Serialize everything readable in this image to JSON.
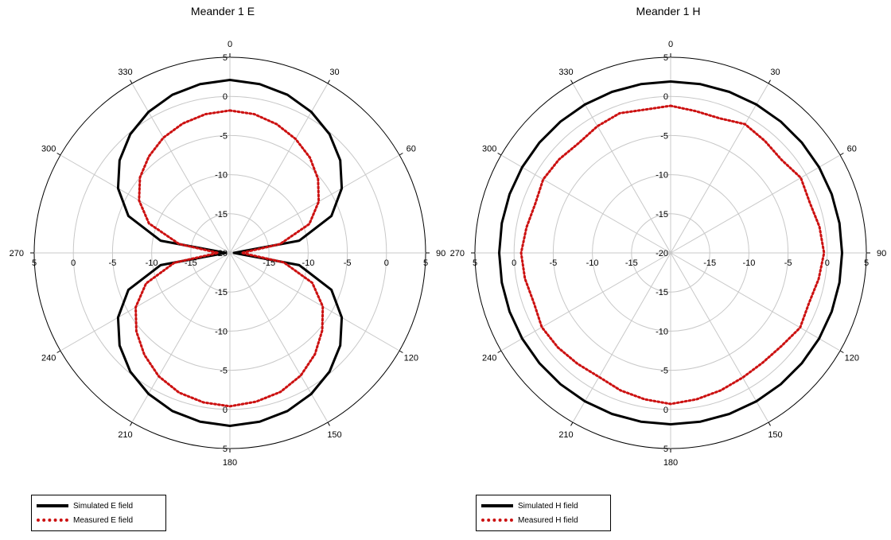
{
  "chart_data": [
    {
      "type": "polar",
      "title": "Meander 1 E",
      "angle_ticks": [
        "0",
        "30",
        "60",
        "90",
        "120",
        "150",
        "180",
        "210",
        "240",
        "270",
        "300",
        "330"
      ],
      "radial_range": [
        -20,
        5
      ],
      "radial_ticks": [
        "-20",
        "-15",
        "-10",
        "-5",
        "0",
        "5"
      ],
      "grid": true,
      "legend_position": "bottom-left",
      "series": [
        {
          "name": "Simulated E field",
          "style": "solid",
          "color": "#000000",
          "angles": [
            0,
            10,
            20,
            30,
            40,
            50,
            60,
            70,
            80,
            90,
            100,
            110,
            120,
            130,
            140,
            150,
            160,
            170,
            180,
            190,
            200,
            210,
            220,
            230,
            240,
            250,
            260,
            270,
            280,
            290,
            300,
            310,
            320,
            330,
            340,
            350
          ],
          "values": [
            2.1,
            1.9,
            1.5,
            0.8,
            -0.2,
            -1.6,
            -3.5,
            -6.2,
            -11.0,
            -19.5,
            -11.0,
            -6.2,
            -3.5,
            -1.6,
            -0.2,
            0.8,
            1.5,
            1.9,
            2.1,
            1.9,
            1.5,
            0.8,
            -0.2,
            -1.6,
            -3.5,
            -6.2,
            -11.0,
            -19.5,
            -11.0,
            -6.2,
            -3.5,
            -1.6,
            -0.2,
            0.8,
            1.5,
            1.9
          ]
        },
        {
          "name": "Measured E field",
          "style": "dotted",
          "color": "#cc1111",
          "angles": [
            0,
            10,
            20,
            30,
            40,
            50,
            60,
            70,
            80,
            90,
            100,
            110,
            120,
            130,
            140,
            150,
            160,
            170,
            180,
            190,
            200,
            210,
            220,
            230,
            240,
            250,
            260,
            270,
            280,
            290,
            300,
            310,
            320,
            330,
            340,
            350
          ],
          "values": [
            -1.8,
            -2.0,
            -2.5,
            -3.2,
            -4.1,
            -5.3,
            -6.9,
            -9.2,
            -13.5,
            -18.5,
            -13.0,
            -8.8,
            -6.3,
            -4.6,
            -3.1,
            -1.9,
            -1.1,
            -0.7,
            -0.4,
            -0.6,
            -1.0,
            -1.8,
            -3.0,
            -4.4,
            -6.1,
            -8.6,
            -12.8,
            -18.5,
            -13.4,
            -9.0,
            -6.6,
            -5.0,
            -3.9,
            -3.0,
            -2.4,
            -2.0
          ]
        }
      ]
    },
    {
      "type": "polar",
      "title": "Meander 1 H",
      "angle_ticks": [
        "0",
        "30",
        "60",
        "90",
        "120",
        "150",
        "180",
        "210",
        "240",
        "270",
        "300",
        "330"
      ],
      "radial_range": [
        -20,
        5
      ],
      "radial_ticks": [
        "-20",
        "-15",
        "-10",
        "-5",
        "0",
        "5"
      ],
      "grid": true,
      "legend_position": "bottom-left",
      "series": [
        {
          "name": "Simulated H field",
          "style": "solid",
          "color": "#000000",
          "angles": [
            0,
            10,
            20,
            30,
            40,
            50,
            60,
            70,
            80,
            90,
            100,
            110,
            120,
            130,
            140,
            150,
            160,
            170,
            180,
            190,
            200,
            210,
            220,
            230,
            240,
            250,
            260,
            270,
            280,
            290,
            300,
            310,
            320,
            330,
            340,
            350
          ],
          "values": [
            1.9,
            1.9,
            1.9,
            1.9,
            1.9,
            1.9,
            1.9,
            1.9,
            1.9,
            1.9,
            1.9,
            1.9,
            1.9,
            1.9,
            1.9,
            1.9,
            1.9,
            1.9,
            1.9,
            1.9,
            1.9,
            1.9,
            1.9,
            1.9,
            1.9,
            1.9,
            1.9,
            1.9,
            1.9,
            1.9,
            1.9,
            1.9,
            1.9,
            1.9,
            1.9,
            1.9
          ]
        },
        {
          "name": "Measured H field",
          "style": "dotted",
          "color": "#cc1111",
          "angles": [
            0,
            10,
            20,
            30,
            40,
            50,
            60,
            70,
            80,
            90,
            100,
            110,
            120,
            130,
            140,
            150,
            160,
            170,
            180,
            190,
            200,
            210,
            220,
            230,
            240,
            250,
            260,
            270,
            280,
            290,
            300,
            310,
            320,
            330,
            340,
            350
          ],
          "values": [
            -1.2,
            -1.6,
            -1.7,
            -1.0,
            -1.3,
            -1.5,
            -0.8,
            -1.1,
            -0.7,
            -0.4,
            -0.8,
            -1.2,
            -0.9,
            -1.5,
            -1.7,
            -1.6,
            -1.3,
            -1.0,
            -0.7,
            -1.0,
            -1.3,
            -1.7,
            -1.5,
            -1.2,
            -1.0,
            -1.4,
            -1.1,
            -0.9,
            -1.3,
            -1.6,
            -1.2,
            -1.4,
            -1.7,
            -1.3,
            -1.0,
            -1.4
          ]
        }
      ]
    }
  ]
}
